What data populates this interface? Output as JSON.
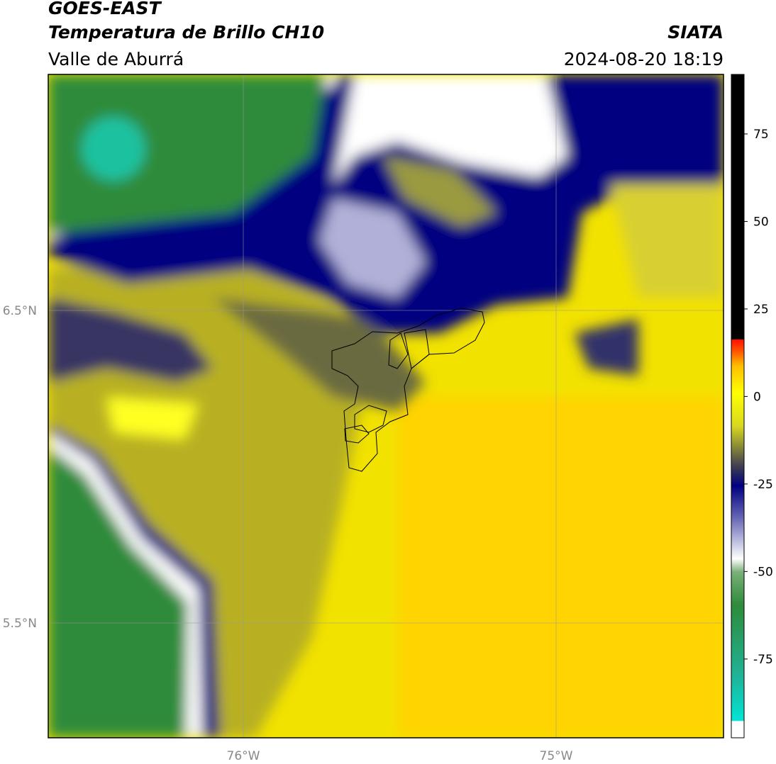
{
  "header": {
    "title": "GOES-EAST",
    "subtitle": "Temperatura de Brillo CH10",
    "region": "Valle de Aburrá",
    "agency": "SIATA",
    "datetime": "2024-08-20 18:19"
  },
  "map": {
    "lon_labels": [
      "76°W",
      "75°W"
    ],
    "lat_labels": [
      "6.5°N",
      "5.5°N"
    ]
  },
  "colorbar": {
    "lim": [
      -97.5,
      92
    ],
    "ticks": [
      75,
      50,
      25,
      0,
      -25,
      -50,
      -75
    ]
  }
}
